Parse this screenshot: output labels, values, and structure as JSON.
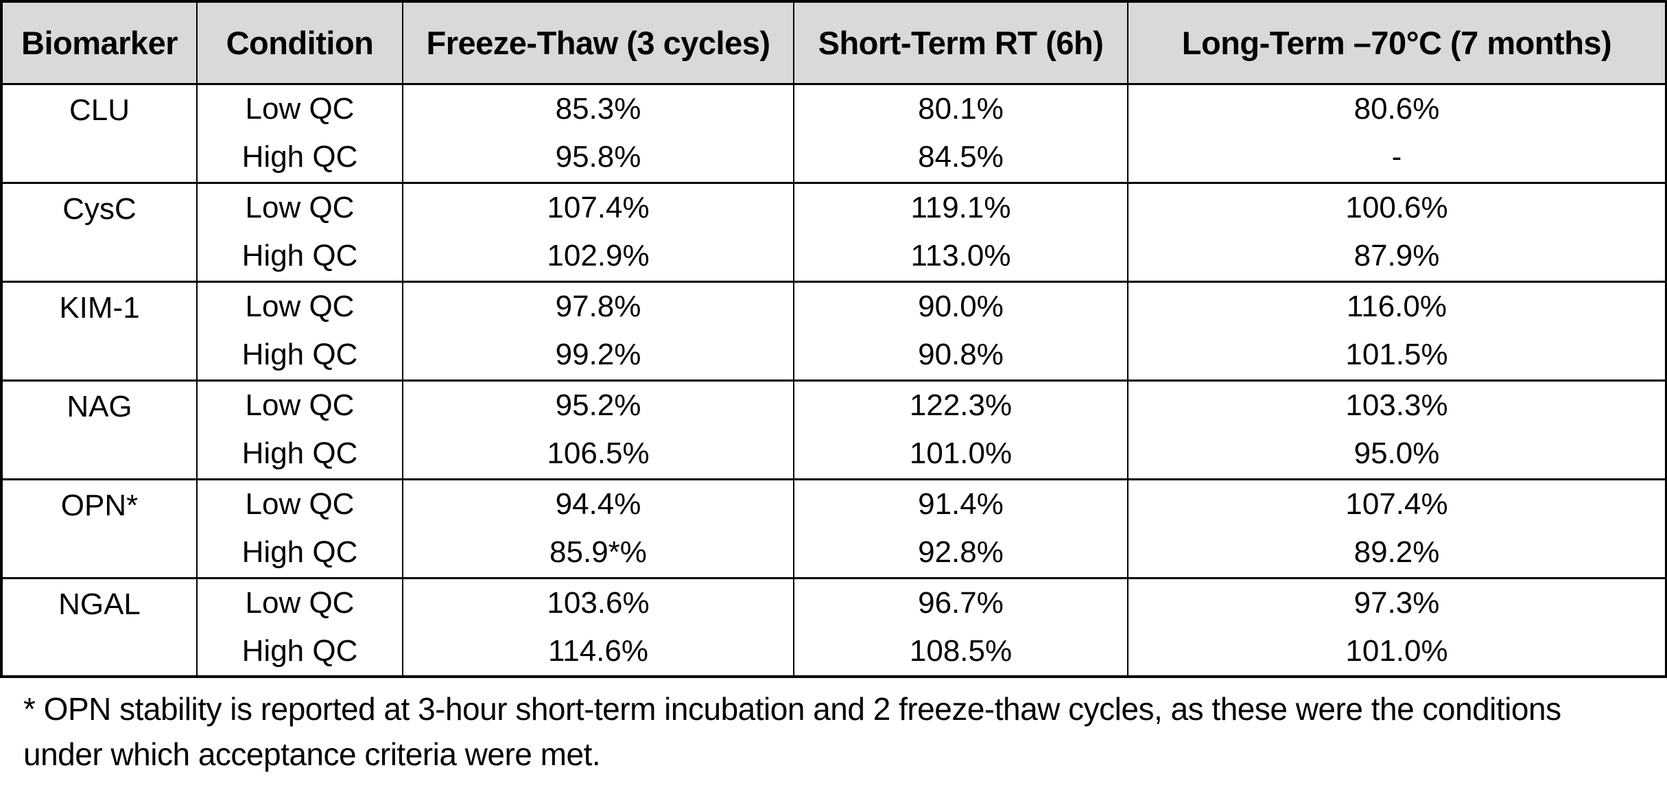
{
  "chart_data": {
    "type": "table",
    "columns": [
      "Biomarker",
      "Condition",
      "Freeze-Thaw (3 cycles)",
      "Short-Term RT (6h)",
      "Long-Term –70°C (7 months)"
    ],
    "rows": [
      [
        "CLU",
        "Low QC",
        "85.3%",
        "80.1%",
        "80.6%"
      ],
      [
        "CLU",
        "High QC",
        "95.8%",
        "84.5%",
        "-"
      ],
      [
        "CysC",
        "Low QC",
        "107.4%",
        "119.1%",
        "100.6%"
      ],
      [
        "CysC",
        "High QC",
        "102.9%",
        "113.0%",
        "87.9%"
      ],
      [
        "KIM-1",
        "Low QC",
        "97.8%",
        "90.0%",
        "116.0%"
      ],
      [
        "KIM-1",
        "High QC",
        "99.2%",
        "90.8%",
        "101.5%"
      ],
      [
        "NAG",
        "Low QC",
        "95.2%",
        "122.3%",
        "103.3%"
      ],
      [
        "NAG",
        "High QC",
        "106.5%",
        "101.0%",
        "95.0%"
      ],
      [
        "OPN*",
        "Low QC",
        "94.4%",
        "91.4%",
        "107.4%"
      ],
      [
        "OPN*",
        "High QC",
        "85.9*%",
        "92.8%",
        "89.2%"
      ],
      [
        "NGAL",
        "Low QC",
        "103.6%",
        "96.7%",
        "97.3%"
      ],
      [
        "NGAL",
        "High QC",
        "114.6%",
        "108.5%",
        "101.0%"
      ]
    ],
    "footnote": "* OPN stability is reported at 3-hour short-term incubation and 2 freeze-thaw cycles, as these were the conditions under which acceptance criteria were met.",
    "layout": {
      "header_bg": "#d9d9d9",
      "grid": "black solid",
      "group_span": 2
    }
  },
  "table": {
    "columns": [
      "Biomarker",
      "Condition",
      "Freeze-Thaw (3 cycles)",
      "Short-Term RT (6h)",
      "Long-Term –70°C (7 months)"
    ],
    "groups": [
      {
        "biomarker": "CLU",
        "rows": [
          [
            "Low QC",
            "85.3%",
            "80.1%",
            "80.6%"
          ],
          [
            "High QC",
            "95.8%",
            "84.5%",
            "-"
          ]
        ]
      },
      {
        "biomarker": "CysC",
        "rows": [
          [
            "Low QC",
            "107.4%",
            "119.1%",
            "100.6%"
          ],
          [
            "High QC",
            "102.9%",
            "113.0%",
            "87.9%"
          ]
        ]
      },
      {
        "biomarker": "KIM-1",
        "rows": [
          [
            "Low QC",
            "97.8%",
            "90.0%",
            "116.0%"
          ],
          [
            "High QC",
            "99.2%",
            "90.8%",
            "101.5%"
          ]
        ]
      },
      {
        "biomarker": "NAG",
        "rows": [
          [
            "Low QC",
            "95.2%",
            "122.3%",
            "103.3%"
          ],
          [
            "High QC",
            "106.5%",
            "101.0%",
            "95.0%"
          ]
        ]
      },
      {
        "biomarker": "OPN*",
        "rows": [
          [
            "Low QC",
            "94.4%",
            "91.4%",
            "107.4%"
          ],
          [
            "High QC",
            "85.9*%",
            "92.8%",
            "89.2%"
          ]
        ]
      },
      {
        "biomarker": "NGAL",
        "rows": [
          [
            "Low QC",
            "103.6%",
            "96.7%",
            "97.3%"
          ],
          [
            "High QC",
            "114.6%",
            "108.5%",
            "101.0%"
          ]
        ]
      }
    ]
  },
  "footnote_text": "* OPN stability is reported at 3-hour short-term incubation and 2 freeze-thaw cycles, as these were the conditions under which acceptance criteria were met.",
  "colors": {
    "header_bg": "#d9d9d9",
    "border": "#000000",
    "text": "#000000",
    "background": "#ffffff"
  }
}
